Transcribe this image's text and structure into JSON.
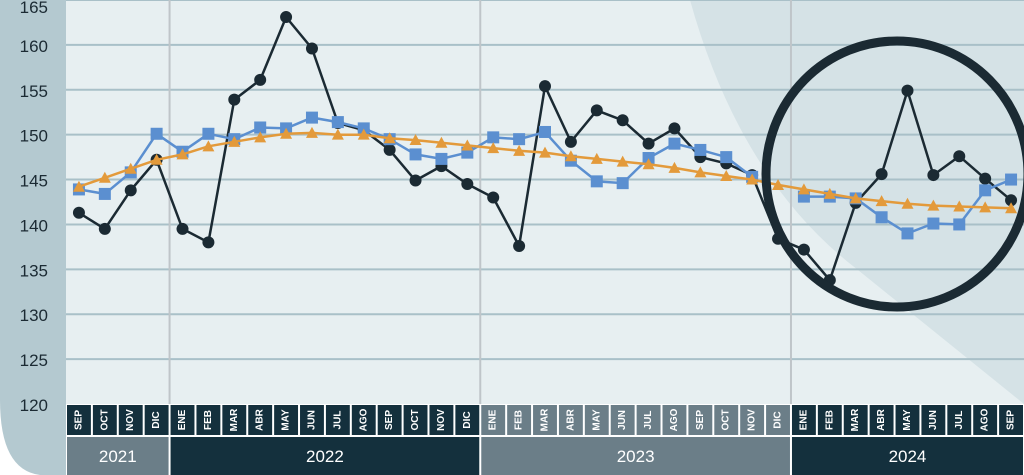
{
  "chart_data": {
    "type": "line",
    "title": "",
    "xlabel": "",
    "ylabel": "",
    "ylim": [
      120,
      165
    ],
    "yticks": [
      120,
      125,
      130,
      135,
      140,
      145,
      150,
      155,
      160,
      165
    ],
    "grid": true,
    "legend": "none",
    "categories": [
      "SEP",
      "OCT",
      "NOV",
      "DIC",
      "ENE",
      "FEB",
      "MAR",
      "ABR",
      "MAY",
      "JUN",
      "JUL",
      "AGO",
      "SEP",
      "OCT",
      "NOV",
      "DIC",
      "ENE",
      "FEB",
      "MAR",
      "ABR",
      "MAY",
      "JUN",
      "JUL",
      "AGO",
      "SEP",
      "OCT",
      "NOV",
      "DIC",
      "ENE",
      "FEB",
      "MAR",
      "ABR",
      "MAY",
      "JUN",
      "JUL",
      "AGO",
      "SEP"
    ],
    "years": [
      {
        "label": "2021",
        "start": 0,
        "end": 3
      },
      {
        "label": "2022",
        "start": 4,
        "end": 15
      },
      {
        "label": "2023",
        "start": 16,
        "end": 27
      },
      {
        "label": "2024",
        "start": 28,
        "end": 36
      }
    ],
    "series": [
      {
        "marker": "circle",
        "color": "#1b2a33",
        "values": [
          141.3,
          139.5,
          143.8,
          147.2,
          139.5,
          138.0,
          153.9,
          156.1,
          163.1,
          159.6,
          151.3,
          150.5,
          148.3,
          144.9,
          146.5,
          144.5,
          143.0,
          137.6,
          155.4,
          149.2,
          152.7,
          151.6,
          149.0,
          150.7,
          147.5,
          146.8,
          145.5,
          138.4,
          137.2,
          133.8,
          142.4,
          145.6,
          154.9,
          145.5,
          147.6,
          145.1,
          142.7
        ]
      },
      {
        "marker": "square",
        "color": "#5b8fd0",
        "values": [
          143.9,
          143.4,
          145.8,
          150.1,
          148.1,
          150.1,
          149.5,
          150.8,
          150.7,
          151.9,
          151.4,
          150.7,
          149.5,
          147.8,
          147.3,
          148.0,
          149.7,
          149.5,
          150.3,
          147.1,
          144.8,
          144.6,
          147.4,
          149.0,
          148.3,
          147.5,
          145.3,
          null,
          143.1,
          143.1,
          142.9,
          140.8,
          139.0,
          140.1,
          140.0,
          143.8,
          145.0
        ]
      },
      {
        "marker": "triangle",
        "color": "#e39a3b",
        "values": [
          144.2,
          145.2,
          146.2,
          147.2,
          147.8,
          148.7,
          149.2,
          149.7,
          150.1,
          150.2,
          150.0,
          150.0,
          149.6,
          149.4,
          149.1,
          148.8,
          148.5,
          148.2,
          148.0,
          147.6,
          147.3,
          147.0,
          146.7,
          146.3,
          145.8,
          145.4,
          145.0,
          144.4,
          143.9,
          143.4,
          142.9,
          142.6,
          142.3,
          142.1,
          142.0,
          141.9,
          141.8
        ]
      }
    ],
    "highlight": {
      "shape": "circle",
      "around": "2024 ENE–SEP"
    }
  }
}
